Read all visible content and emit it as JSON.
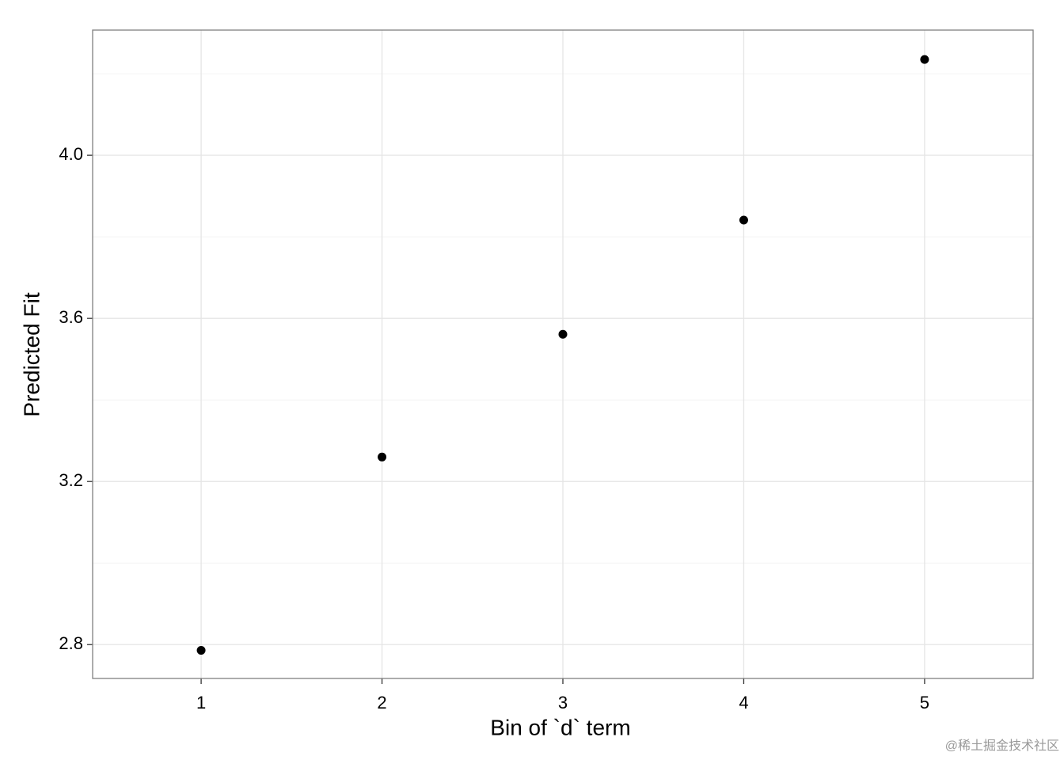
{
  "chart_data": {
    "type": "scatter",
    "x_label": "Bin of `d` term",
    "y_label": "Predicted Fit",
    "x": [
      1,
      2,
      3,
      4,
      5
    ],
    "series": [
      {
        "name": "Predicted Fit",
        "color": "#000000",
        "values": [
          2.786,
          3.26,
          3.561,
          3.841,
          4.235
        ]
      }
    ],
    "xlim": [
      0.4,
      5.6
    ],
    "xticks": [
      1,
      2,
      3,
      4,
      5
    ],
    "ylim": [
      2.717,
      4.307
    ],
    "yticks": [
      {
        "value": 2.8,
        "label": "2.8"
      },
      {
        "value": 3.2,
        "label": "3.2"
      },
      {
        "value": 3.6,
        "label": "3.6"
      },
      {
        "value": 4.0,
        "label": "4.0"
      }
    ],
    "minor_yticks": [
      3.0,
      3.4,
      3.8,
      4.2
    ],
    "grid": true,
    "watermark": "@稀土掘金技术社区"
  }
}
